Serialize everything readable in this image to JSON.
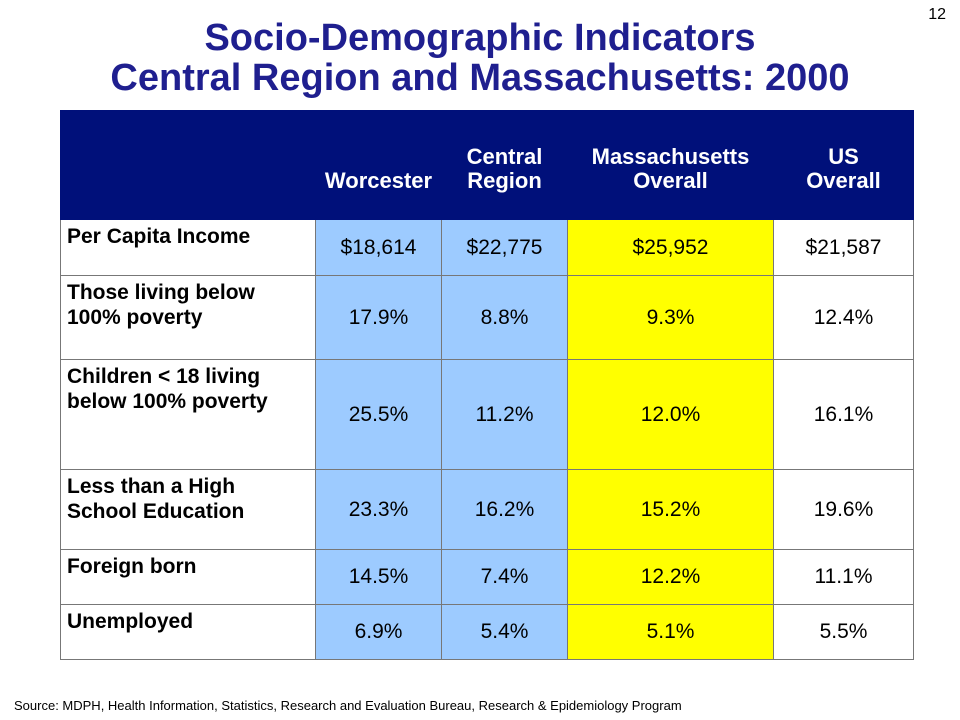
{
  "slide_number": "12",
  "title": {
    "line1": "Socio-Demographic Indicators",
    "line2": "Central Region and Massachusetts: 2000"
  },
  "table": {
    "headers": [
      "",
      "Worcester",
      "Central\nRegion",
      "Massachusetts\nOverall",
      "US\nOverall"
    ],
    "rows": [
      {
        "label": "Per Capita Income",
        "values": [
          "$18,614",
          "$22,775",
          "$25,952",
          "$21,587"
        ]
      },
      {
        "label": "Those living below 100% poverty",
        "values": [
          "17.9%",
          "8.8%",
          "9.3%",
          "12.4%"
        ]
      },
      {
        "label": "Children < 18 living below 100% poverty",
        "values": [
          "25.5%",
          "11.2%",
          "12.0%",
          "16.1%"
        ]
      },
      {
        "label": "Less than a High School Education",
        "values": [
          "23.3%",
          "16.2%",
          "15.2%",
          "19.6%"
        ]
      },
      {
        "label": "Foreign born",
        "values": [
          "14.5%",
          "7.4%",
          "12.2%",
          "11.1%"
        ]
      },
      {
        "label": "Unemployed",
        "values": [
          "6.9%",
          "5.4%",
          "5.1%",
          "5.5%"
        ]
      }
    ]
  },
  "source": "Source:  MDPH, Health Information, Statistics, Research and Evaluation Bureau, Research & Epidemiology Program",
  "colors": {
    "title": "#1f1f8f",
    "header_bg": "#00107a",
    "local_columns": "#9dcbff",
    "state_column": "#ffff00"
  }
}
